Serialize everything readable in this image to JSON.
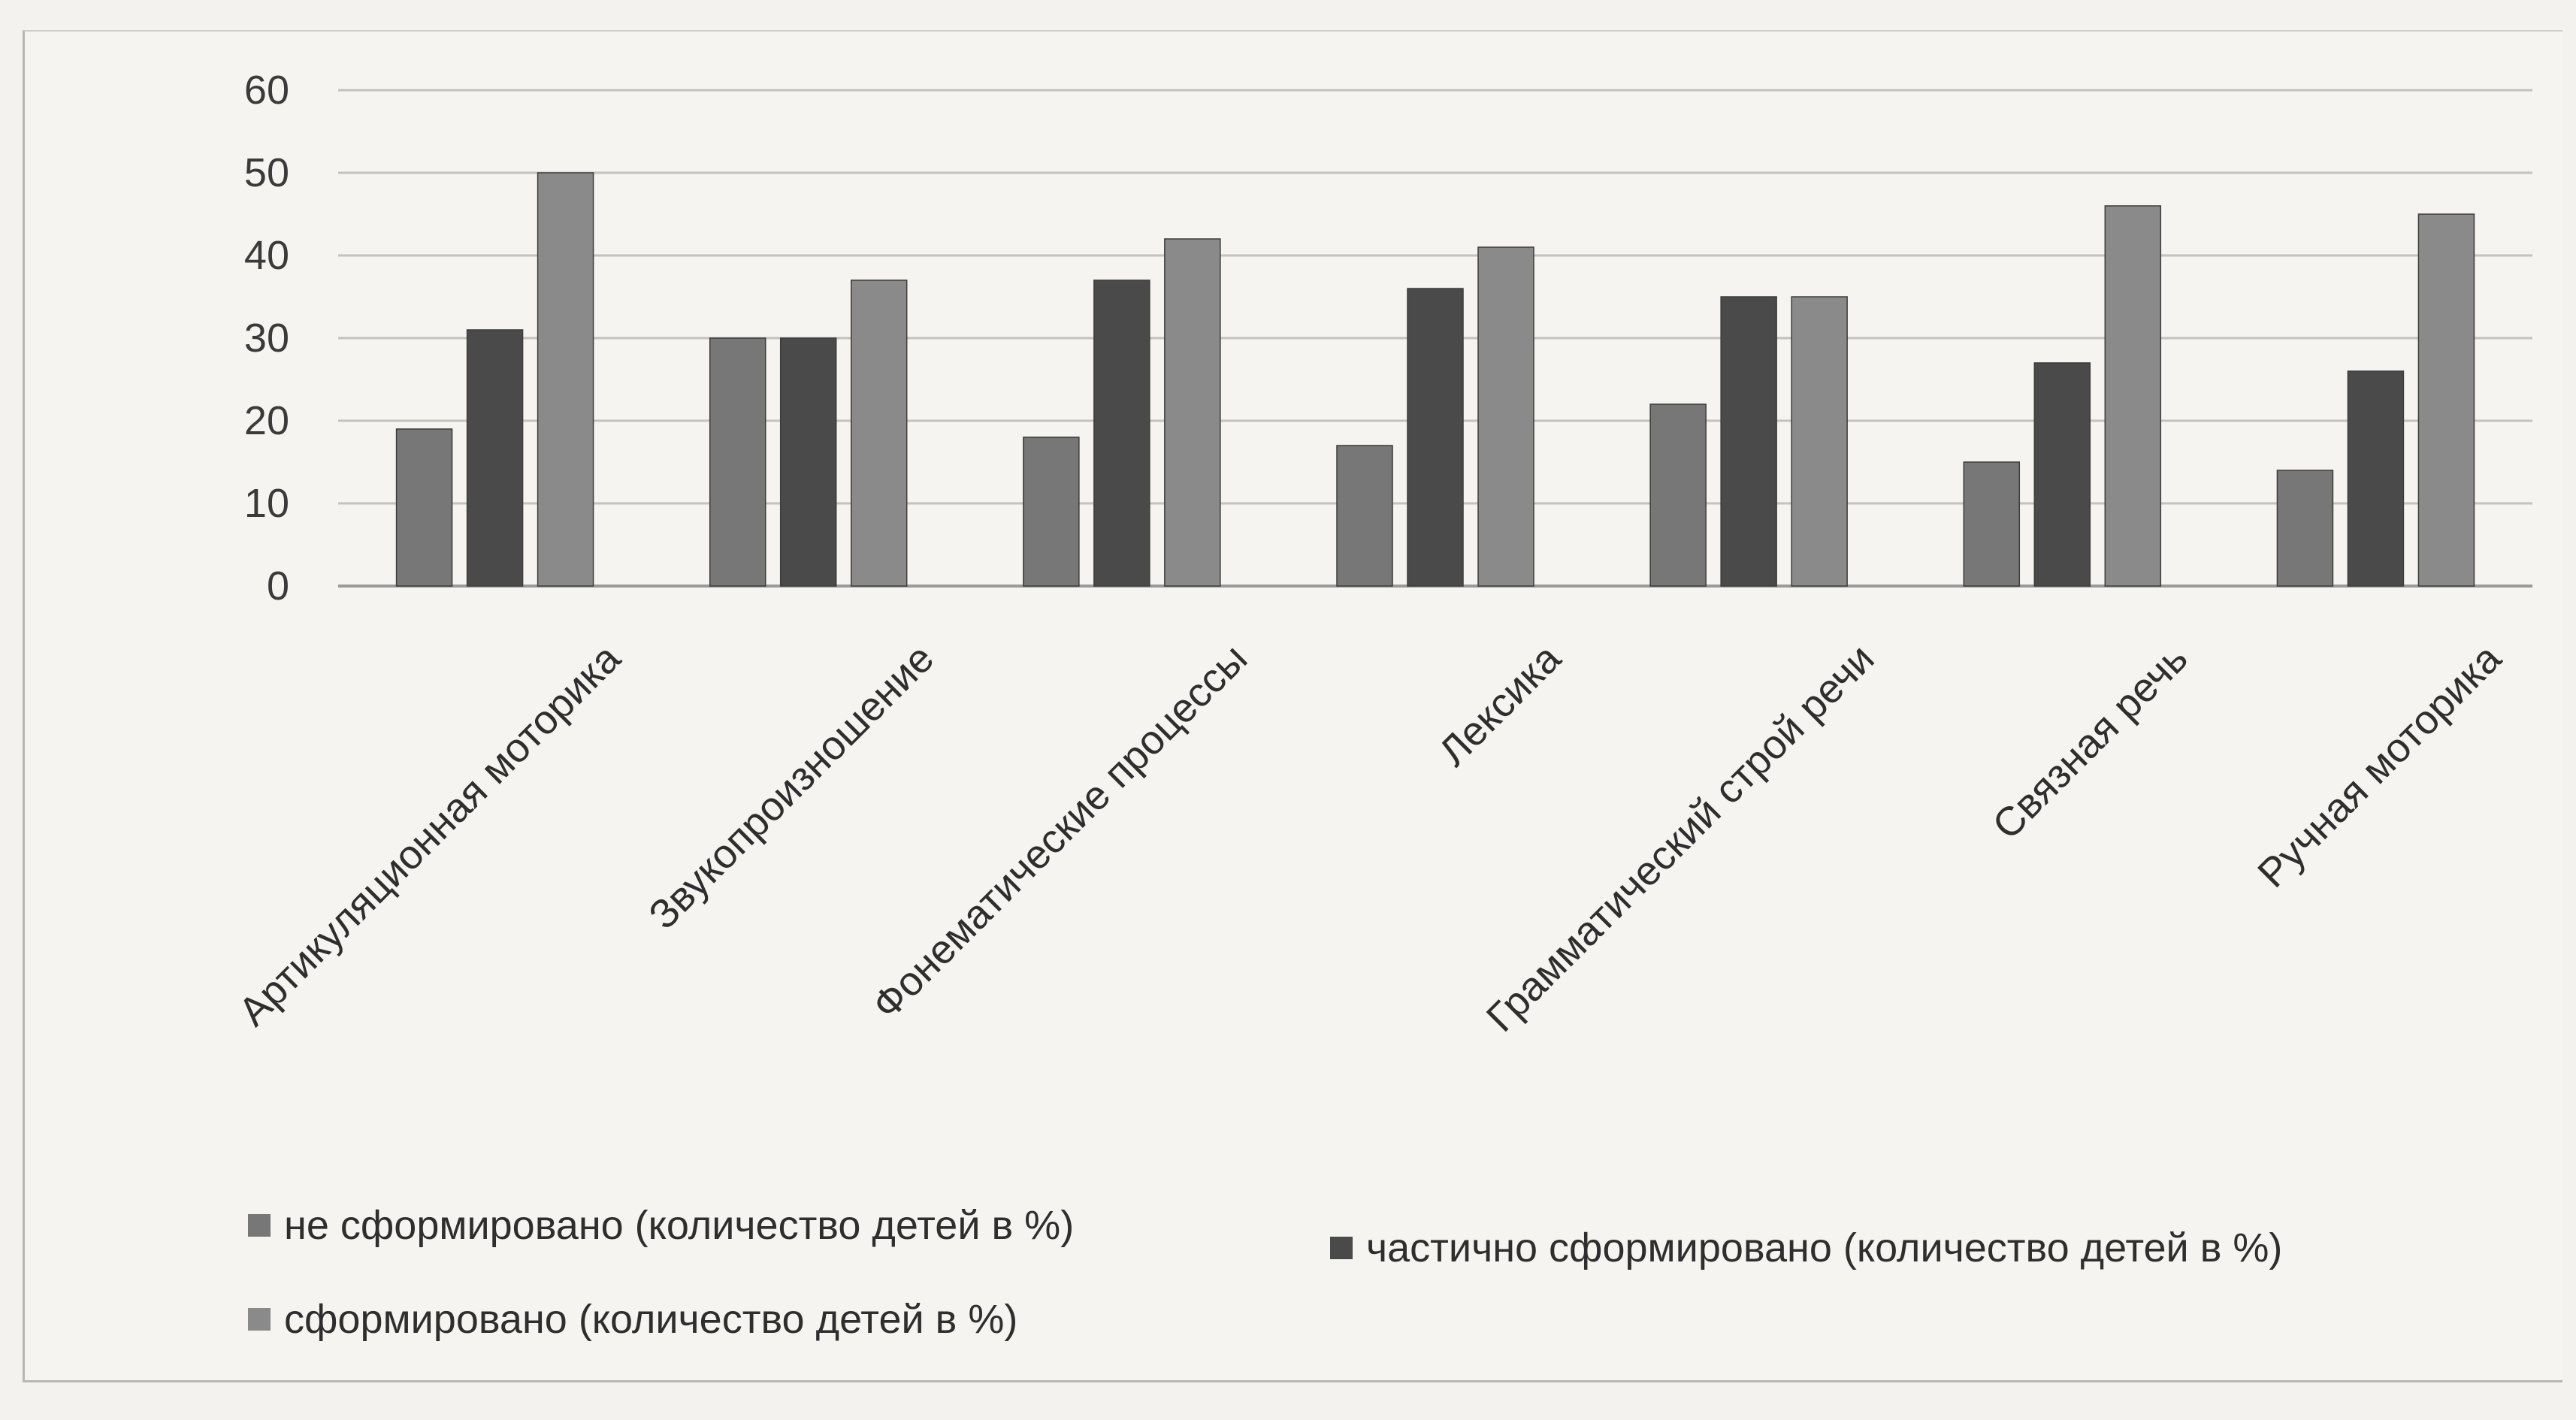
{
  "chart_data": {
    "type": "bar",
    "categories": [
      "Артикуляционная моторика",
      "Звукопроизношение",
      "Фонематические процессы",
      "Лексика",
      "Грамматический строй речи",
      "Связная речь",
      "Ручная моторика"
    ],
    "series": [
      {
        "name": "не сформировано (количество детей в %)",
        "values": [
          19,
          30,
          18,
          17,
          22,
          15,
          14
        ],
        "color": "#777777"
      },
      {
        "name": "частично сформировано (количество детей в %)",
        "values": [
          31,
          30,
          37,
          36,
          35,
          27,
          26
        ],
        "color": "#4a4a4a"
      },
      {
        "name": "сформировано (количество детей в %)",
        "values": [
          50,
          37,
          42,
          41,
          35,
          46,
          45
        ],
        "color": "#8a8a8a"
      }
    ],
    "yticks": [
      "0",
      "10",
      "20",
      "30",
      "40",
      "50",
      "60"
    ],
    "ylim": [
      0,
      60
    ],
    "grid": true,
    "legend_position": "bottom"
  }
}
